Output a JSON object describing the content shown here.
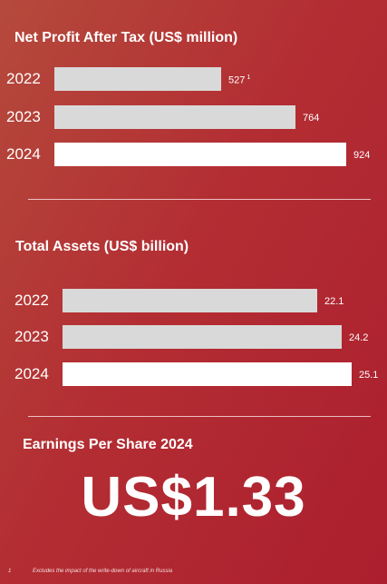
{
  "chart_data": [
    {
      "type": "bar",
      "orientation": "horizontal",
      "title": "Net Profit After Tax (US$ million)",
      "categories": [
        "2022",
        "2023",
        "2024"
      ],
      "values": [
        527,
        764,
        924
      ],
      "value_labels": [
        "527",
        "764",
        "924"
      ],
      "value_footnote_markers": [
        "1",
        "",
        ""
      ],
      "colors": [
        "#d9d9d9",
        "#d9d9d9",
        "#ffffff"
      ]
    },
    {
      "type": "bar",
      "orientation": "horizontal",
      "title": "Total Assets (US$ billion)",
      "categories": [
        "2022",
        "2023",
        "2024"
      ],
      "values": [
        22.1,
        24.2,
        25.1
      ],
      "value_labels": [
        "22.1",
        "24.2",
        "25.1"
      ],
      "colors": [
        "#d9d9d9",
        "#d9d9d9",
        "#ffffff"
      ]
    }
  ],
  "eps": {
    "title": "Earnings Per Share 2024",
    "value": "US$1.33"
  },
  "footnote": {
    "marker": "1",
    "text": "Excludes the impact of the write-down of aircraft in Russia"
  }
}
